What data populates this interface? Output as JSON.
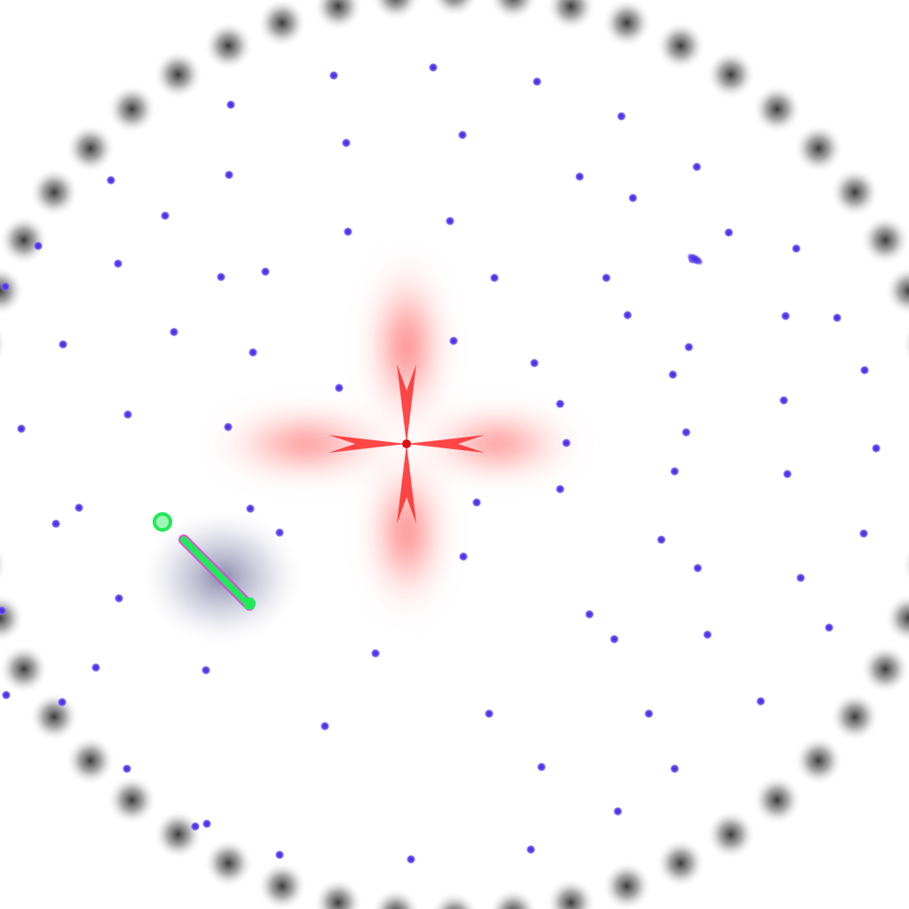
{
  "colors": {
    "background": "#ffffff",
    "particle": "#5b3df0",
    "particle_glow": "#9b7cff",
    "boundary_blob": "#1a1a1a",
    "center_burst": "#ff1a1a",
    "player_body": "#22e85a",
    "player_outline": "#e040e0",
    "player_shadow": "#3a3a7a",
    "cursor_ring": "#22e85a"
  },
  "icons": {
    "player": "green-rod-ship-icon",
    "cursor": "green-ring-cursor-icon",
    "hazard": "red-four-point-star-icon"
  },
  "scene": {
    "particle_count": 121,
    "boundary_blob_count": 52
  }
}
